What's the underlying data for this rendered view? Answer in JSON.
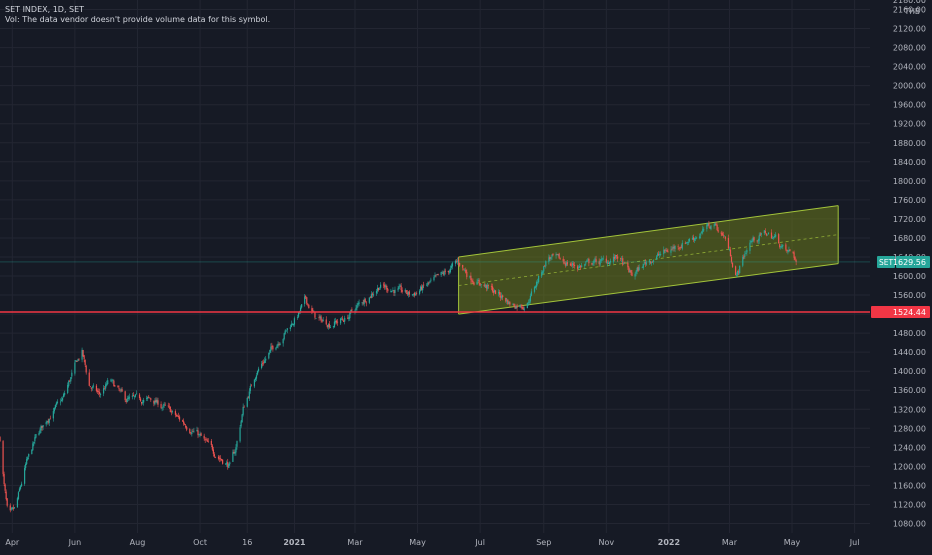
{
  "header": {
    "symbol_line": "SET INDEX, 1D, SET",
    "volume_note": "Vol: The data vendor doesn't provide volume data for this symbol.",
    "currency": "THB"
  },
  "colors": {
    "background": "#161a25",
    "grid": "#232632",
    "axis_text": "#b2b5be",
    "up_candle": "#26a69a",
    "down_candle": "#ef5350",
    "support_line": "#f23645",
    "channel_fill": "#6b7a1c",
    "channel_line": "#a3c43a",
    "last_price": "#26a69a"
  },
  "chart_data": {
    "type": "candlestick",
    "symbol": "SET INDEX",
    "interval": "1D",
    "exchange": "SET",
    "ylim": [
      1060,
      2180
    ],
    "xlim": [
      "2020-03-20",
      "2022-07-16"
    ],
    "y_ticks": [
      1080,
      1120,
      1160,
      1200,
      1240,
      1280,
      1320,
      1360,
      1400,
      1440,
      1480,
      1520,
      1560,
      1600,
      1640,
      1680,
      1720,
      1760,
      1800,
      1840,
      1880,
      1920,
      1960,
      2000,
      2040,
      2080,
      2120,
      2160
    ],
    "y_top_partial_label": "2180.00",
    "x_ticks": [
      {
        "label": "Apr",
        "date": "2020-04-01",
        "bold": false
      },
      {
        "label": "Jun",
        "date": "2020-06-01",
        "bold": false
      },
      {
        "label": "Aug",
        "date": "2020-08-01",
        "bold": false
      },
      {
        "label": "Oct",
        "date": "2020-10-01",
        "bold": false
      },
      {
        "label": "16",
        "date": "2020-11-16",
        "bold": false
      },
      {
        "label": "2021",
        "date": "2021-01-01",
        "bold": true
      },
      {
        "label": "Mar",
        "date": "2021-03-01",
        "bold": false
      },
      {
        "label": "May",
        "date": "2021-05-01",
        "bold": false
      },
      {
        "label": "Jul",
        "date": "2021-07-01",
        "bold": false
      },
      {
        "label": "Sep",
        "date": "2021-09-01",
        "bold": false
      },
      {
        "label": "Nov",
        "date": "2021-11-01",
        "bold": false
      },
      {
        "label": "2022",
        "date": "2022-01-01",
        "bold": true
      },
      {
        "label": "Mar",
        "date": "2022-03-01",
        "bold": false
      },
      {
        "label": "May",
        "date": "2022-05-01",
        "bold": false
      },
      {
        "label": "Jul",
        "date": "2022-07-01",
        "bold": false
      }
    ],
    "path_points": [
      {
        "date": "2020-03-20",
        "close": 1260
      },
      {
        "date": "2020-03-24",
        "close": 1160
      },
      {
        "date": "2020-03-28",
        "close": 1090
      },
      {
        "date": "2020-04-04",
        "close": 1110
      },
      {
        "date": "2020-04-14",
        "close": 1200
      },
      {
        "date": "2020-04-24",
        "close": 1260
      },
      {
        "date": "2020-05-05",
        "close": 1300
      },
      {
        "date": "2020-05-20",
        "close": 1340
      },
      {
        "date": "2020-06-03",
        "close": 1420
      },
      {
        "date": "2020-06-08",
        "close": 1440
      },
      {
        "date": "2020-06-15",
        "close": 1370
      },
      {
        "date": "2020-06-25",
        "close": 1350
      },
      {
        "date": "2020-07-05",
        "close": 1380
      },
      {
        "date": "2020-07-20",
        "close": 1340
      },
      {
        "date": "2020-08-01",
        "close": 1340
      },
      {
        "date": "2020-08-15",
        "close": 1340
      },
      {
        "date": "2020-08-30",
        "close": 1320
      },
      {
        "date": "2020-09-10",
        "close": 1300
      },
      {
        "date": "2020-09-28",
        "close": 1270
      },
      {
        "date": "2020-10-10",
        "close": 1240
      },
      {
        "date": "2020-10-25",
        "close": 1210
      },
      {
        "date": "2020-10-30",
        "close": 1200
      },
      {
        "date": "2020-11-05",
        "close": 1240
      },
      {
        "date": "2020-11-12",
        "close": 1320
      },
      {
        "date": "2020-11-25",
        "close": 1400
      },
      {
        "date": "2020-12-08",
        "close": 1440
      },
      {
        "date": "2020-12-22",
        "close": 1480
      },
      {
        "date": "2021-01-05",
        "close": 1520
      },
      {
        "date": "2021-01-12",
        "close": 1550
      },
      {
        "date": "2021-01-22",
        "close": 1510
      },
      {
        "date": "2021-02-05",
        "close": 1500
      },
      {
        "date": "2021-02-20",
        "close": 1510
      },
      {
        "date": "2021-03-05",
        "close": 1540
      },
      {
        "date": "2021-03-25",
        "close": 1580
      },
      {
        "date": "2021-04-10",
        "close": 1570
      },
      {
        "date": "2021-04-25",
        "close": 1560
      },
      {
        "date": "2021-05-10",
        "close": 1580
      },
      {
        "date": "2021-05-25",
        "close": 1600
      },
      {
        "date": "2021-06-10",
        "close": 1630
      },
      {
        "date": "2021-06-20",
        "close": 1600
      },
      {
        "date": "2021-07-05",
        "close": 1580
      },
      {
        "date": "2021-07-20",
        "close": 1560
      },
      {
        "date": "2021-08-01",
        "close": 1540
      },
      {
        "date": "2021-08-15",
        "close": 1540
      },
      {
        "date": "2021-08-28",
        "close": 1600
      },
      {
        "date": "2021-09-05",
        "close": 1640
      },
      {
        "date": "2021-09-20",
        "close": 1630
      },
      {
        "date": "2021-10-05",
        "close": 1620
      },
      {
        "date": "2021-10-20",
        "close": 1630
      },
      {
        "date": "2021-11-01",
        "close": 1630
      },
      {
        "date": "2021-11-12",
        "close": 1640
      },
      {
        "date": "2021-11-26",
        "close": 1600
      },
      {
        "date": "2021-12-10",
        "close": 1630
      },
      {
        "date": "2021-12-28",
        "close": 1650
      },
      {
        "date": "2022-01-15",
        "close": 1670
      },
      {
        "date": "2022-02-01",
        "close": 1690
      },
      {
        "date": "2022-02-14",
        "close": 1710
      },
      {
        "date": "2022-02-25",
        "close": 1680
      },
      {
        "date": "2022-03-08",
        "close": 1600
      },
      {
        "date": "2022-03-20",
        "close": 1670
      },
      {
        "date": "2022-04-05",
        "close": 1690
      },
      {
        "date": "2022-04-15",
        "close": 1680
      },
      {
        "date": "2022-04-25",
        "close": 1650
      },
      {
        "date": "2022-05-02",
        "close": 1648
      },
      {
        "date": "2022-05-05",
        "close": 1629.56
      }
    ],
    "horizontal_line": {
      "value": 1524.44,
      "label": "1524.44"
    },
    "channel": {
      "upper": [
        {
          "date": "2021-06-10",
          "value": 1640
        },
        {
          "date": "2022-06-15",
          "value": 1748
        }
      ],
      "lower": [
        {
          "date": "2021-06-10",
          "value": 1520
        },
        {
          "date": "2022-06-15",
          "value": 1626
        }
      ],
      "midline": [
        {
          "date": "2021-06-10",
          "value": 1580
        },
        {
          "date": "2022-06-15",
          "value": 1687
        }
      ]
    },
    "last_price": {
      "symbol": "SET",
      "value": 1629.56,
      "label": "1629.56"
    },
    "title": "SET INDEX, 1D, SET",
    "legend_placement": "top-left",
    "grid": true
  }
}
